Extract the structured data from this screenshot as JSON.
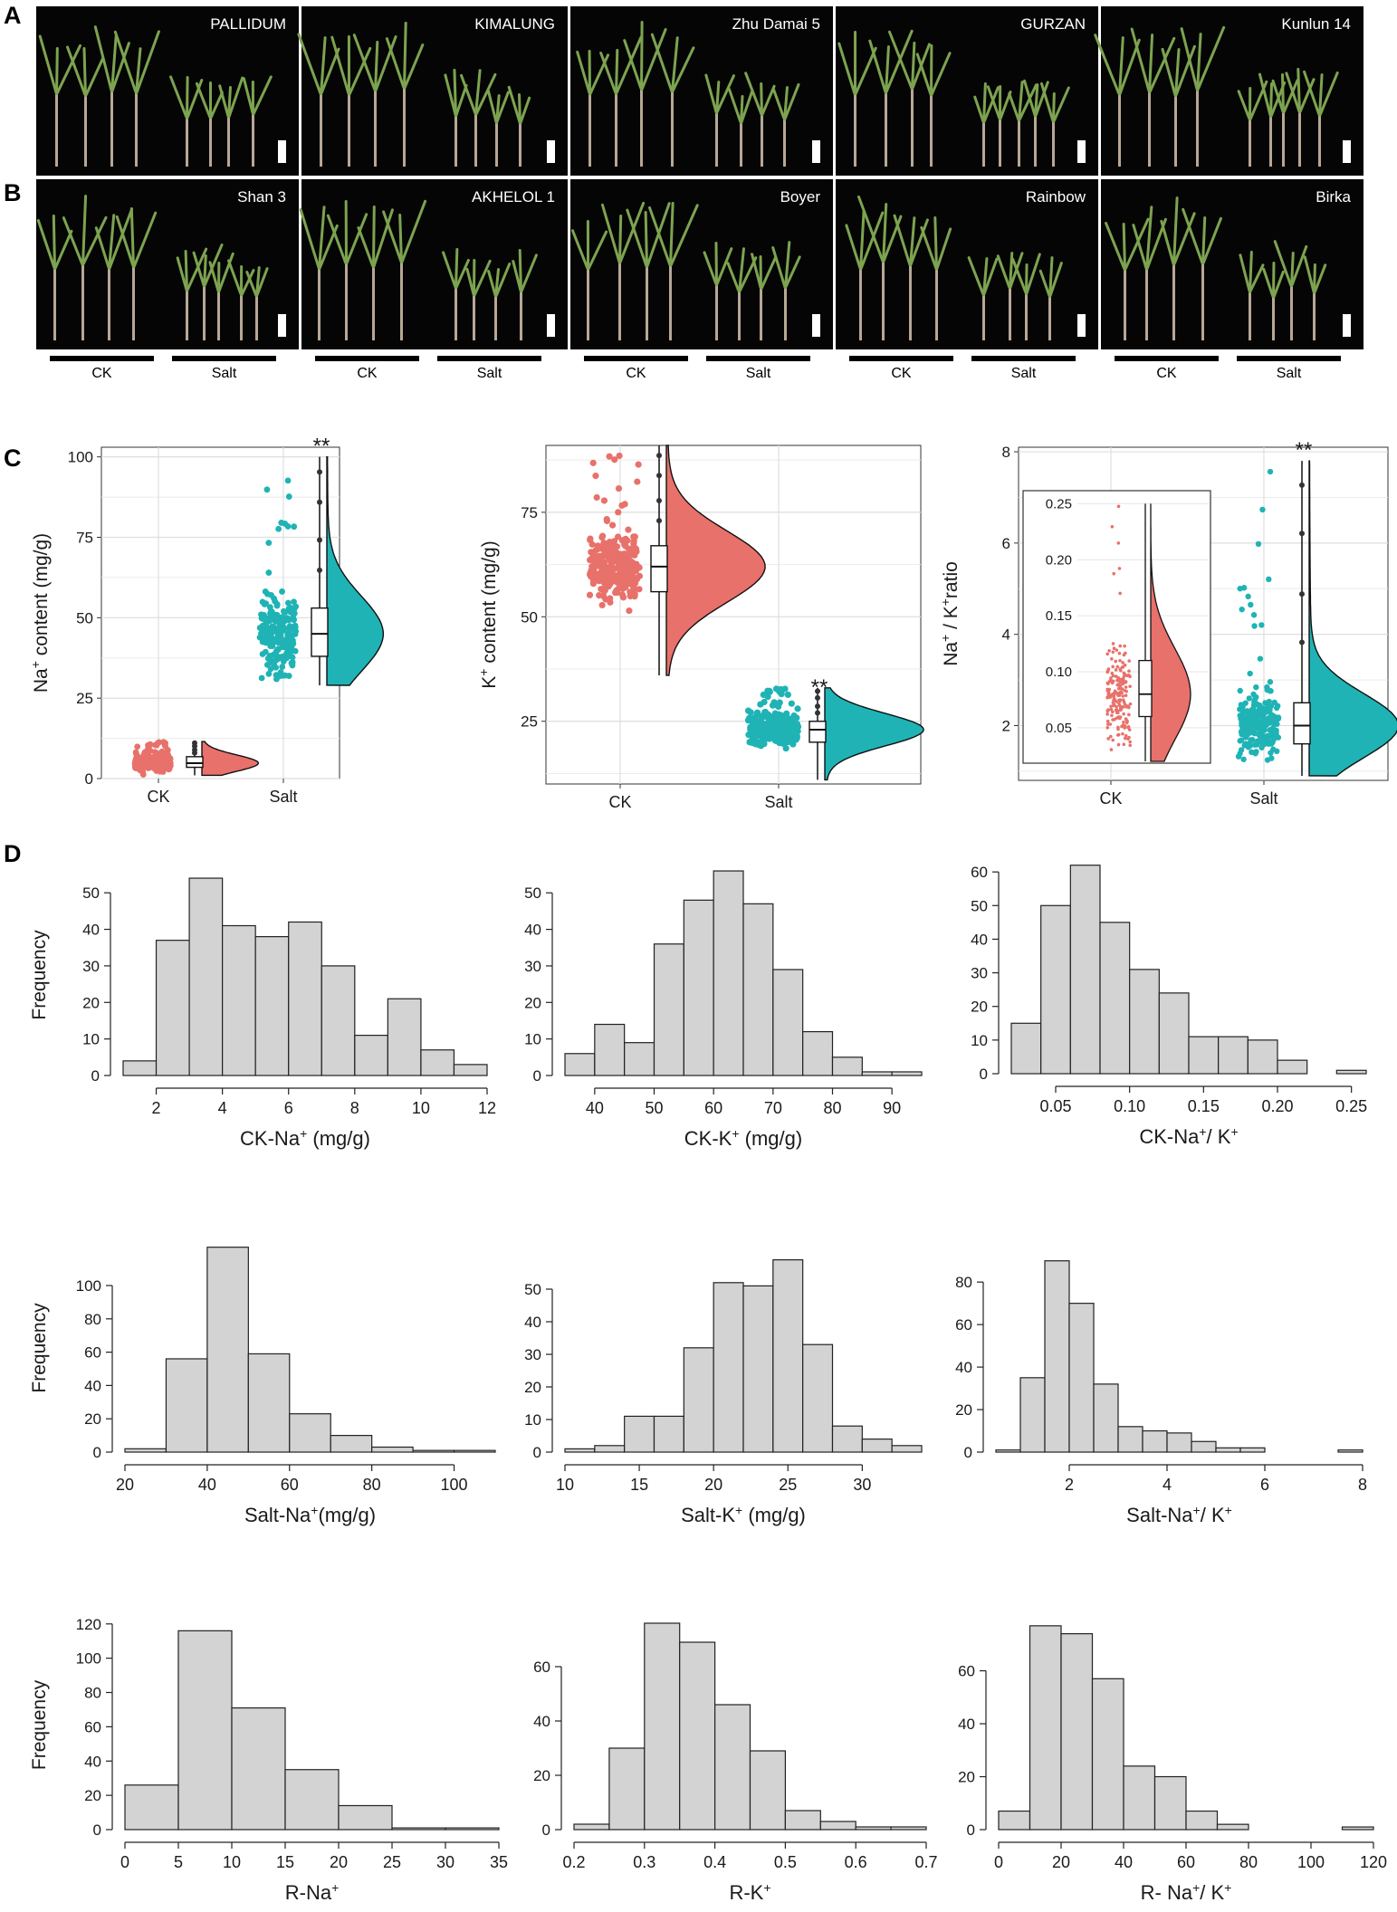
{
  "panels": {
    "A": "A",
    "B": "B",
    "C": "C",
    "D": "D"
  },
  "photos": {
    "rowA": [
      "PALLIDUM",
      "KIMALUNG",
      "Zhu Damai 5",
      "GURZAN",
      "Kunlun 14"
    ],
    "rowB": [
      "Shan 3",
      "AKHELOL 1",
      "Boyer",
      "Rainbow",
      "Birka"
    ],
    "condition_labels": {
      "ck": "CK",
      "salt": "Salt"
    }
  },
  "colors": {
    "ck": "#e8716b",
    "salt": "#1fb3b5",
    "hist_fill": "#d3d3d3"
  },
  "chart_data": [
    {
      "id": "C1",
      "type": "raincloud",
      "significance": "**",
      "ylabel_main": "Na",
      "ylabel_sup": "+",
      "ylabel_rest": " content (mg/g)",
      "categories": [
        "CK",
        "Salt"
      ],
      "ylim": [
        0,
        103
      ],
      "yticks": [
        0,
        25,
        50,
        75,
        100
      ],
      "groups": [
        {
          "name": "CK",
          "min": 1,
          "q1": 3.5,
          "median": 4.8,
          "q3": 6.8,
          "max": 11.5,
          "points_range": [
            1,
            11.5
          ]
        },
        {
          "name": "Salt",
          "min": 29,
          "q1": 38,
          "median": 45,
          "q3": 53,
          "max": 100,
          "points_range": [
            29,
            100
          ]
        }
      ]
    },
    {
      "id": "C2",
      "type": "raincloud",
      "significance": "**",
      "ylabel_main": "K",
      "ylabel_sup": "+",
      "ylabel_rest": " content (mg/g)",
      "categories": [
        "CK",
        "Salt"
      ],
      "ylim": [
        10,
        91
      ],
      "yticks": [
        25,
        50,
        75
      ],
      "groups": [
        {
          "name": "CK",
          "min": 36,
          "q1": 56,
          "median": 62,
          "q3": 67,
          "max": 91,
          "points_range": [
            36,
            90
          ]
        },
        {
          "name": "Salt",
          "min": 11,
          "q1": 20,
          "median": 23,
          "q3": 25,
          "max": 33,
          "points_range": [
            11,
            33
          ]
        }
      ]
    },
    {
      "id": "C3",
      "type": "raincloud",
      "significance": "**",
      "ylabel_main": "Na",
      "ylabel_sup": "+",
      "ylabel_rest": " / K",
      "ylabel_sup2": "+",
      "ylabel_end": "ratio",
      "categories": [
        "CK",
        "Salt"
      ],
      "ylim": [
        0.8,
        8.1
      ],
      "yticks": [
        2,
        4,
        6,
        8
      ],
      "groups": [
        {
          "name": "Salt",
          "min": 0.9,
          "q1": 1.6,
          "median": 2.0,
          "q3": 2.5,
          "max": 7.8,
          "points_range": [
            0.9,
            7.8
          ]
        }
      ],
      "inset": {
        "ylim": [
          0.02,
          0.26
        ],
        "yticks": [
          "0.05",
          "0.10",
          "0.15",
          "0.20",
          "0.25"
        ],
        "min": 0.02,
        "q1": 0.06,
        "median": 0.08,
        "q3": 0.11,
        "max": 0.25,
        "points_range": [
          0.02,
          0.25
        ]
      }
    },
    {
      "id": "D1",
      "type": "histogram",
      "xlabel": "CK-Na",
      "xlabel_sup": "+",
      "xlabel_rest": " (mg/g)",
      "ylabel": "Frequency",
      "bin_start": 1,
      "bin_width": 1,
      "counts": [
        4,
        37,
        54,
        41,
        38,
        42,
        30,
        11,
        21,
        7,
        3
      ],
      "xlim": [
        1,
        12
      ],
      "xticks": [
        2,
        4,
        6,
        8,
        10,
        12
      ],
      "ylim": [
        0,
        55
      ],
      "yticks": [
        0,
        10,
        20,
        30,
        40,
        50
      ]
    },
    {
      "id": "D2",
      "type": "histogram",
      "xlabel": "CK-K",
      "xlabel_sup": "+",
      "xlabel_rest": " (mg/g)",
      "ylabel": "",
      "bin_start": 35,
      "bin_width": 5,
      "counts": [
        6,
        14,
        9,
        36,
        48,
        56,
        47,
        29,
        12,
        5,
        1,
        1
      ],
      "xlim": [
        35,
        95
      ],
      "xticks": [
        40,
        50,
        60,
        70,
        80,
        90
      ],
      "ylim": [
        0,
        57
      ],
      "yticks": [
        0,
        10,
        20,
        30,
        40,
        50
      ]
    },
    {
      "id": "D3",
      "type": "histogram",
      "xlabel": "CK-Na",
      "xlabel_sup": "+",
      "xlabel_rest": "/ K",
      "xlabel_sup2": "+",
      "ylabel": "",
      "bin_start": 0.02,
      "bin_width": 0.02,
      "counts": [
        15,
        50,
        62,
        45,
        31,
        24,
        11,
        11,
        10,
        4,
        0,
        1
      ],
      "xlim": [
        0.02,
        0.26
      ],
      "xticks": [
        0.05,
        0.1,
        0.15,
        0.2,
        0.25
      ],
      "xtick_labels": [
        "0.05",
        "0.10",
        "0.15",
        "0.20",
        "0.25"
      ],
      "ylim": [
        0,
        63
      ],
      "yticks": [
        0,
        10,
        20,
        30,
        40,
        50,
        60
      ]
    },
    {
      "id": "D4",
      "type": "histogram",
      "xlabel": "Salt-Na",
      "xlabel_sup": "+",
      "xlabel_rest": "(mg/g)",
      "ylabel": "Frequency",
      "bin_start": 20,
      "bin_width": 10,
      "counts": [
        2,
        56,
        123,
        59,
        23,
        10,
        3,
        1,
        1
      ],
      "xlim": [
        20,
        110
      ],
      "xticks": [
        20,
        40,
        60,
        80,
        100
      ],
      "ylim": [
        0,
        125
      ],
      "yticks": [
        0,
        20,
        40,
        60,
        80,
        100
      ]
    },
    {
      "id": "D5",
      "type": "histogram",
      "xlabel": "Salt-K",
      "xlabel_sup": "+",
      "xlabel_rest": " (mg/g)",
      "ylabel": "",
      "bin_start": 10,
      "bin_width": 2,
      "counts": [
        1,
        2,
        11,
        11,
        32,
        52,
        51,
        59,
        33,
        8,
        4,
        2
      ],
      "xlim": [
        10,
        34
      ],
      "xticks": [
        10,
        15,
        20,
        25,
        30
      ],
      "ylim": [
        0,
        60
      ],
      "yticks": [
        0,
        10,
        20,
        30,
        40,
        50
      ]
    },
    {
      "id": "D6",
      "type": "histogram",
      "xlabel": "Salt-Na",
      "xlabel_sup": "+",
      "xlabel_rest": "/ K",
      "xlabel_sup2": "+",
      "ylabel": "",
      "bin_start": 0.5,
      "bin_width": 0.5,
      "counts": [
        1,
        35,
        90,
        70,
        32,
        12,
        10,
        9,
        5,
        2,
        2,
        0,
        0,
        0,
        1
      ],
      "xlim": [
        0.5,
        8
      ],
      "xticks": [
        2,
        4,
        6,
        8
      ],
      "ylim": [
        0,
        92
      ],
      "yticks": [
        0,
        20,
        40,
        60,
        80
      ]
    },
    {
      "id": "D7",
      "type": "histogram",
      "xlabel": "R-Na",
      "xlabel_sup": "+",
      "xlabel_rest": "",
      "ylabel": "Frequency",
      "bin_start": 0,
      "bin_width": 5,
      "counts": [
        26,
        116,
        71,
        35,
        14,
        1,
        1
      ],
      "xlim": [
        0,
        35
      ],
      "xticks": [
        0,
        5,
        10,
        15,
        20,
        25,
        30,
        35
      ],
      "ylim": [
        0,
        122
      ],
      "yticks": [
        0,
        20,
        40,
        60,
        80,
        100,
        120
      ]
    },
    {
      "id": "D8",
      "type": "histogram",
      "xlabel": "R-K",
      "xlabel_sup": "+",
      "xlabel_rest": "",
      "ylabel": "",
      "bin_start": 0.2,
      "bin_width": 0.05,
      "counts": [
        2,
        30,
        76,
        69,
        46,
        29,
        7,
        3,
        1,
        1
      ],
      "xlim": [
        0.2,
        0.7
      ],
      "xticks": [
        0.2,
        0.3,
        0.4,
        0.5,
        0.6,
        0.7
      ],
      "xtick_labels": [
        "0.2",
        "0.3",
        "0.4",
        "0.5",
        "0.6",
        "0.7"
      ],
      "ylim": [
        0,
        77
      ],
      "yticks": [
        0,
        20,
        40,
        60
      ]
    },
    {
      "id": "D9",
      "type": "histogram",
      "xlabel": "R- Na",
      "xlabel_sup": "+",
      "xlabel_rest": "/ K",
      "xlabel_sup2": "+",
      "ylabel": "",
      "bin_start": 0,
      "bin_width": 10,
      "counts": [
        7,
        77,
        74,
        57,
        24,
        20,
        7,
        2,
        0,
        0,
        0,
        1
      ],
      "xlim": [
        0,
        120
      ],
      "xticks": [
        0,
        20,
        40,
        60,
        80,
        100,
        120
      ],
      "ylim": [
        0,
        79
      ],
      "yticks": [
        0,
        20,
        40,
        60
      ]
    }
  ]
}
